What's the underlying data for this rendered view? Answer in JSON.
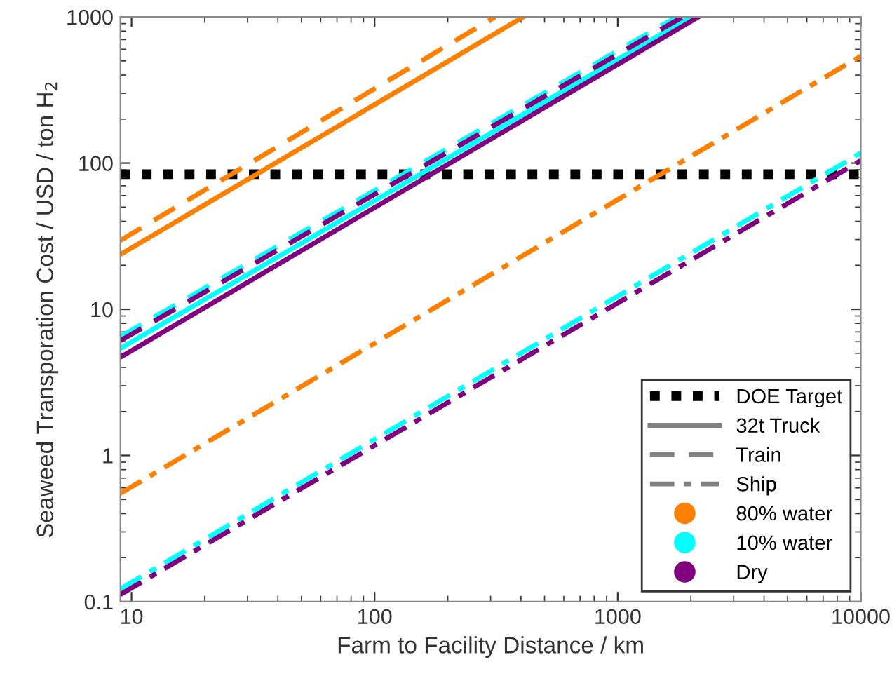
{
  "chart_data": {
    "type": "line",
    "xlabel": "Farm to Facility Distance / km",
    "ylabel": "Seaweed Transporation Cost / USD / ton H$_{2}$",
    "log": "xy",
    "xlim": [
      9,
      10000
    ],
    "ylim": [
      0.1,
      1000
    ],
    "xticks": [
      10,
      100,
      1000,
      10000
    ],
    "yticks": [
      0.1,
      1,
      10,
      100,
      1000
    ],
    "grid": false,
    "legend": "bottom right",
    "ref_lines": [
      {
        "axis": "y",
        "value": 84,
        "label": "DOE Target",
        "color": "#000000",
        "line_style": "dotted"
      }
    ],
    "series": [
      {
        "name": "32t Truck",
        "color": "#808080",
        "line_style": "solid"
      },
      {
        "name": "Train",
        "color": "#808080",
        "line_style": "dashed"
      },
      {
        "name": "Ship",
        "color": "#808080",
        "line_style": "dashdot"
      },
      {
        "name": "80% water",
        "type": "scatter",
        "marker": "circle",
        "color": "#ff8000"
      },
      {
        "name": "10% water",
        "type": "scatter",
        "marker": "circle",
        "color": "#00ffff"
      },
      {
        "name": "Dry",
        "type": "scatter",
        "marker": "circle",
        "color": "#800080"
      },
      {
        "color": "#ff8000",
        "line_style": "solid",
        "x": [
          9,
          409
        ],
        "values": [
          23.7,
          1000
        ]
      },
      {
        "color": "#ff8000",
        "line_style": "dashed",
        "x": [
          9,
          313
        ],
        "values": [
          29.6,
          1000
        ]
      },
      {
        "color": "#ff8000",
        "line_style": "dashdot",
        "x": [
          9,
          10000
        ],
        "values": [
          0.55,
          540
        ]
      },
      {
        "color": "#00ffff",
        "line_style": "solid",
        "x": [
          9,
          2000
        ],
        "values": [
          5.4,
          1000
        ]
      },
      {
        "color": "#00ffff",
        "line_style": "dashed",
        "x": [
          9,
          1750
        ],
        "values": [
          6.5,
          1000
        ]
      },
      {
        "color": "#00ffff",
        "line_style": "dashdot",
        "x": [
          9,
          10000
        ],
        "values": [
          0.122,
          117
        ]
      },
      {
        "color": "#800080",
        "line_style": "solid",
        "x": [
          9,
          2150
        ],
        "values": [
          4.7,
          1000
        ]
      },
      {
        "color": "#800080",
        "line_style": "dashed",
        "x": [
          9,
          1850
        ],
        "values": [
          6.1,
          1000
        ]
      },
      {
        "color": "#800080",
        "line_style": "dashdot",
        "x": [
          9,
          10000
        ],
        "values": [
          0.112,
          104
        ]
      }
    ]
  }
}
